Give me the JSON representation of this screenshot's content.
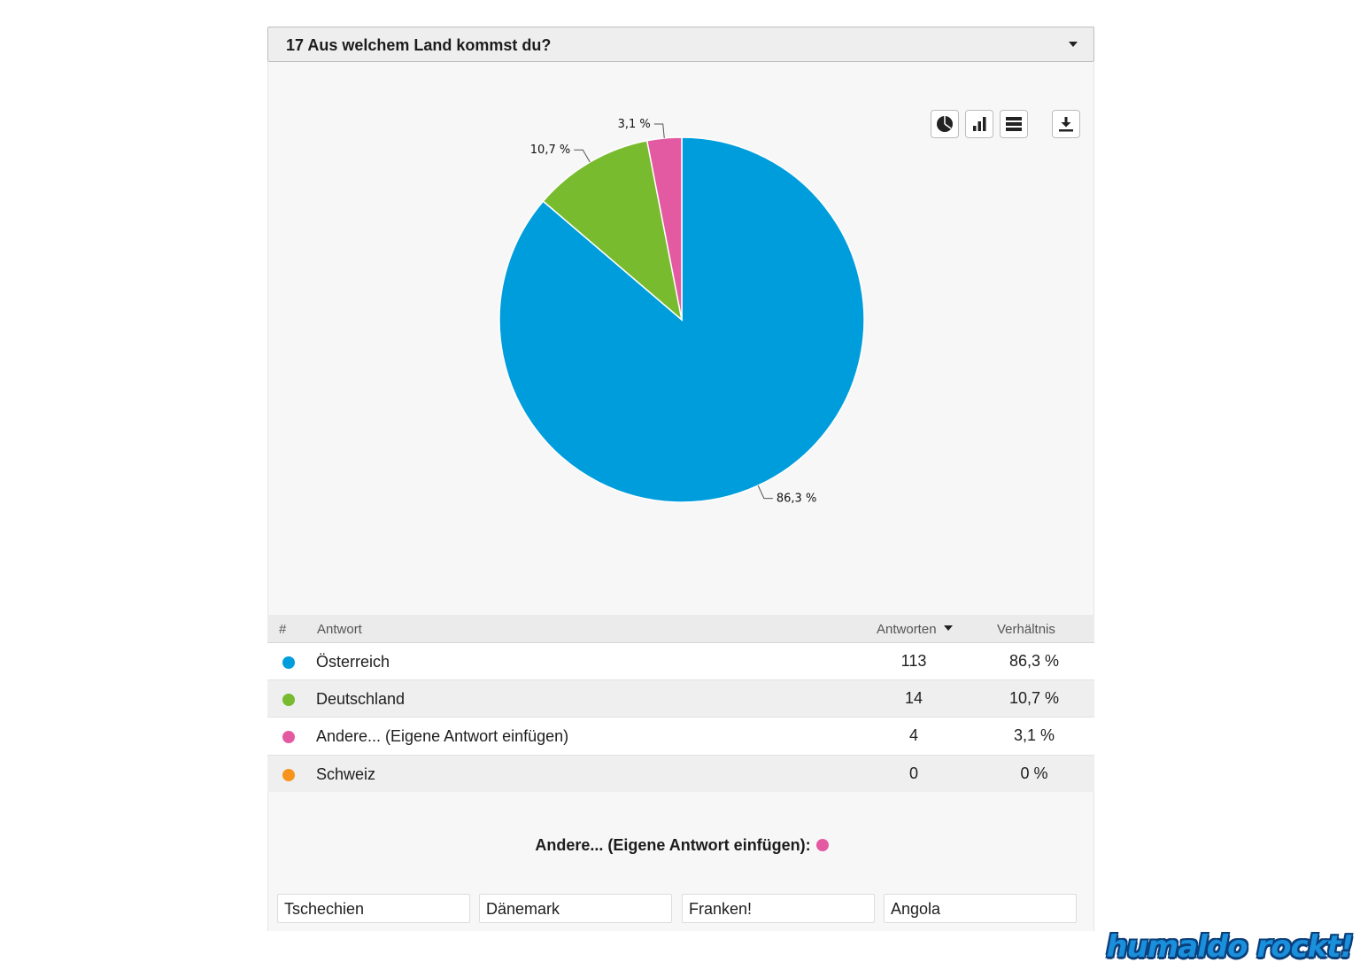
{
  "question": {
    "title": "17 Aus welchem Land kommst du?"
  },
  "toolbar": {
    "icons": [
      "pie-chart-icon",
      "bar-chart-icon",
      "table-icon",
      "download-icon"
    ]
  },
  "chart_data": {
    "type": "pie",
    "slices": [
      {
        "label": "Österreich",
        "value": 113,
        "percent_label": "86,3 %",
        "color": "#009ddc"
      },
      {
        "label": "Deutschland",
        "value": 14,
        "percent_label": "10,7 %",
        "color": "#79bb2e"
      },
      {
        "label": "Andere... (Eigene Antwort einfügen)",
        "value": 4,
        "percent_label": "3,1 %",
        "color": "#e35aa3"
      },
      {
        "label": "Schweiz",
        "value": 0,
        "percent_label": "0 %",
        "color": "#f7941d"
      }
    ]
  },
  "table": {
    "headers": {
      "index": "#",
      "answer": "Antwort",
      "count": "Antworten",
      "ratio": "Verhältnis"
    },
    "rows": [
      {
        "label": "Österreich",
        "count": "113",
        "ratio": "86,3 %",
        "color": "#009ddc"
      },
      {
        "label": "Deutschland",
        "count": "14",
        "ratio": "10,7 %",
        "color": "#79bb2e"
      },
      {
        "label": "Andere... (Eigene Antwort einfügen)",
        "count": "4",
        "ratio": "3,1 %",
        "color": "#e35aa3"
      },
      {
        "label": "Schweiz",
        "count": "0",
        "ratio": "0 %",
        "color": "#f7941d"
      }
    ]
  },
  "other_answers": {
    "title": "Andere... (Eigene Antwort einfügen):",
    "color": "#e35aa3",
    "items": [
      "Tschechien",
      "Dänemark",
      "Franken!",
      "Angola"
    ]
  },
  "watermark": {
    "text": "humaldo rockt!"
  }
}
